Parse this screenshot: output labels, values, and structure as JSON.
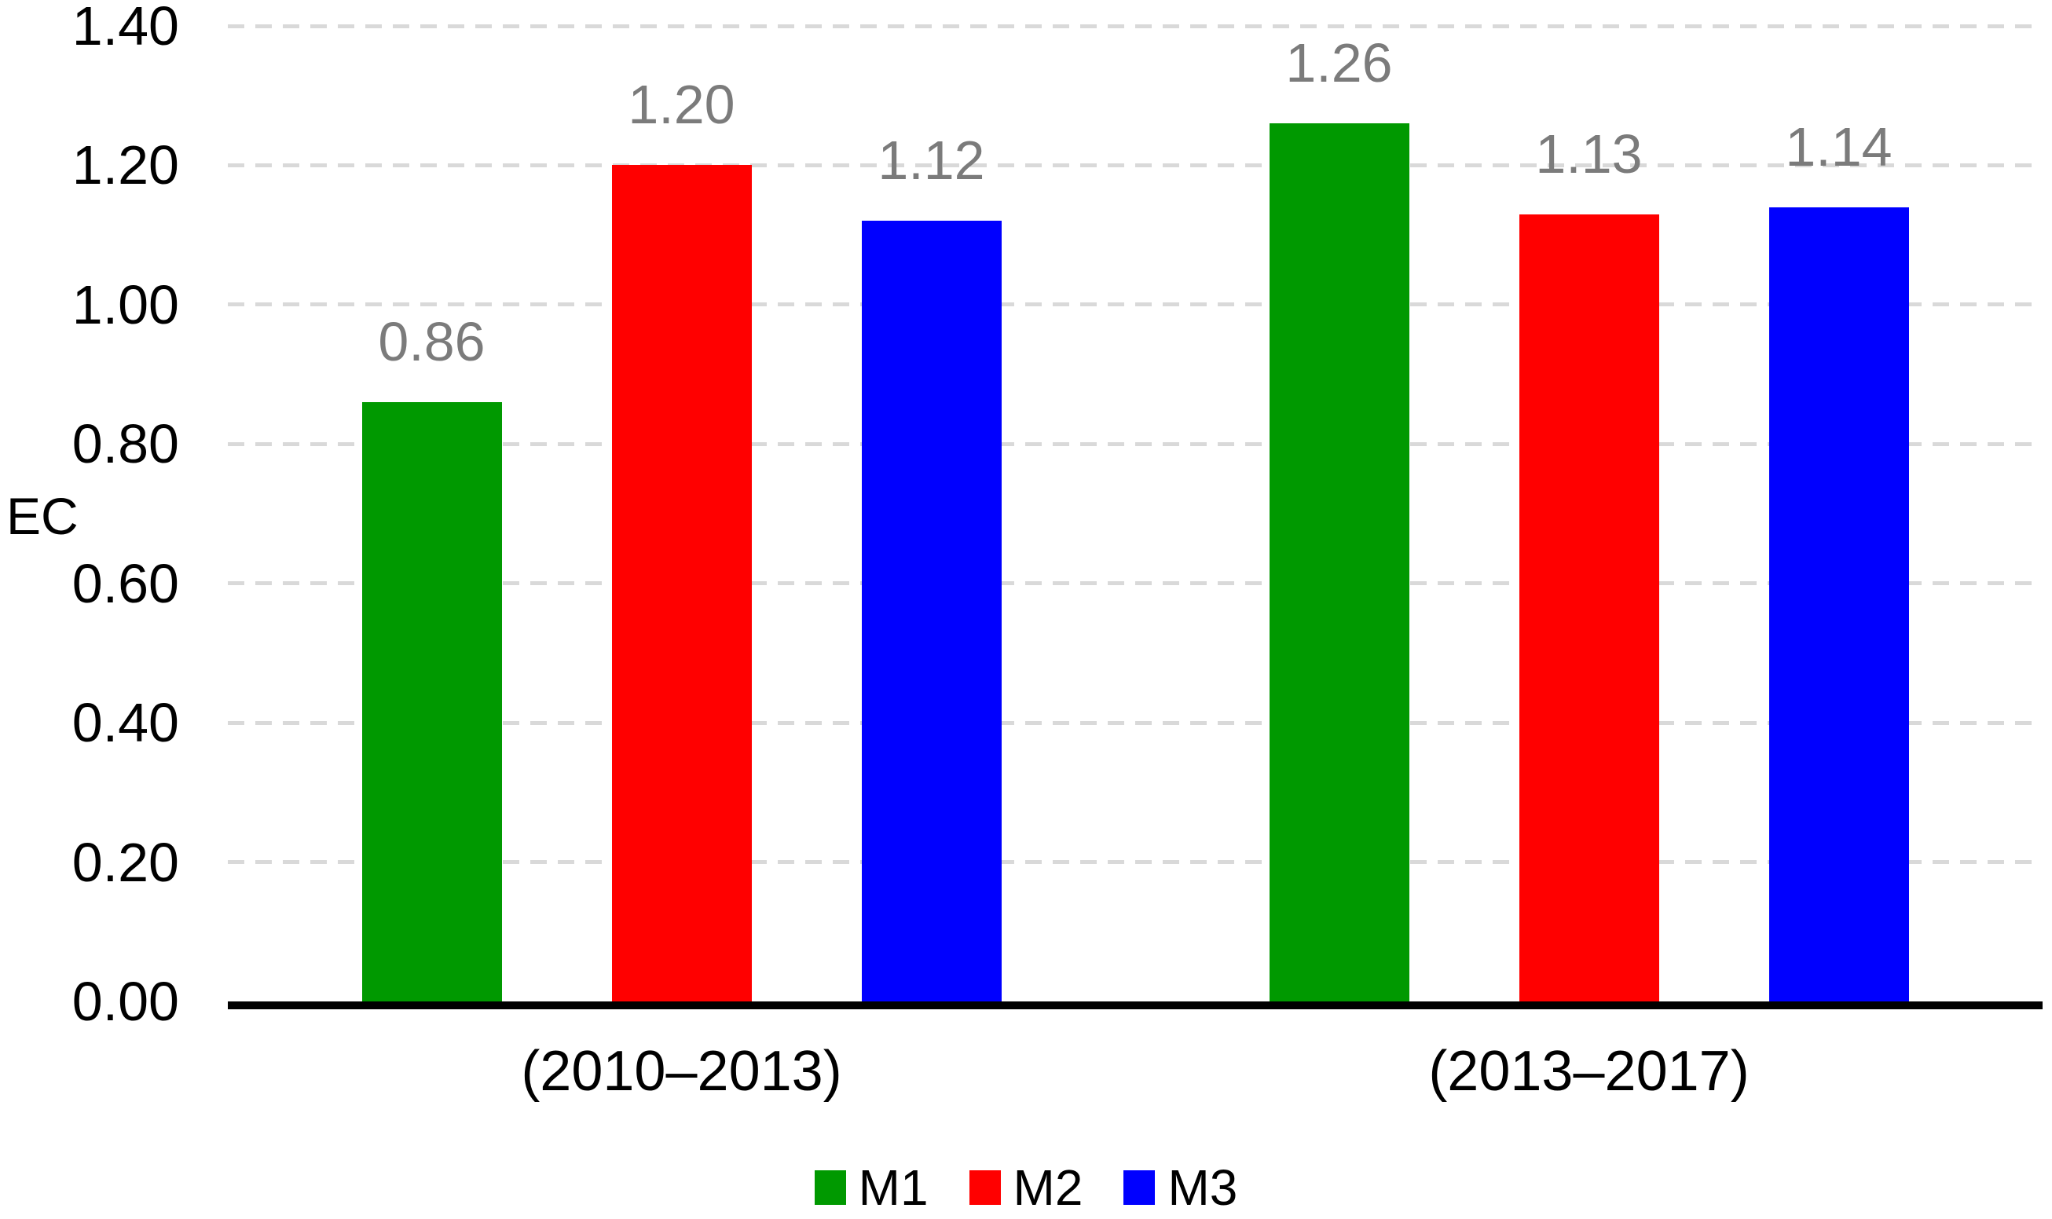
{
  "chart_data": {
    "type": "bar",
    "title": "",
    "categories": [
      "(2010–2013)",
      "(2013–2017)"
    ],
    "series": [
      {
        "name": "M1",
        "color": "#009900",
        "values": [
          0.86,
          1.26
        ]
      },
      {
        "name": "M2",
        "color": "#ff0000",
        "values": [
          1.2,
          1.13
        ]
      },
      {
        "name": "M3",
        "color": "#0000ff",
        "values": [
          1.12,
          1.14
        ]
      }
    ],
    "xlabel": "",
    "ylabel": "EC",
    "ylim": [
      0,
      1.4
    ],
    "ytick_step": 0.2,
    "ytick_labels": [
      "0.00",
      "0.20",
      "0.40",
      "0.60",
      "0.80",
      "1.00",
      "1.20",
      "1.40"
    ],
    "value_labels": [
      "0.86",
      "1.20",
      "1.12",
      "1.26",
      "1.13",
      "1.14"
    ],
    "grid": "horizontal-dashed",
    "legend_position": "bottom",
    "legend_entries": [
      "M1",
      "M2",
      "M3"
    ]
  },
  "colors": {
    "background": "#ffffff",
    "gridline": "#d9d9d9",
    "axis_line": "#000000",
    "tick_text": "#000000",
    "value_label_text": "#7b7b7b"
  }
}
